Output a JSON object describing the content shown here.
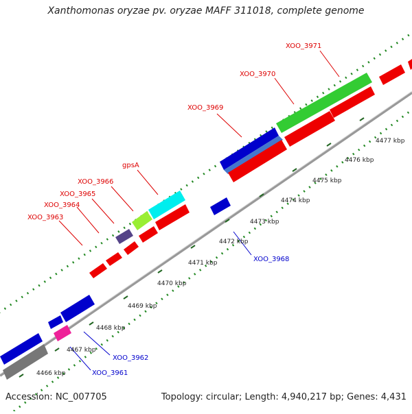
{
  "title": "Xanthomonas oryzae pv. oryzae MAFF 311018, complete genome",
  "footer": {
    "accession": "Accession: NC_007705",
    "summary": "Topology: circular; Length: 4,940,217 bp; Genes: 4,431"
  },
  "ticks": [
    "4466 kbp",
    "4467 kbp",
    "4468 kbp",
    "4469 kbp",
    "4470 kbp",
    "4471 kbp",
    "4472 kbp",
    "4473 kbp",
    "4474 kbp",
    "4475 kbp",
    "4476 kbp",
    "4477 kbp"
  ],
  "genes": {
    "top": [
      "XOO_3963",
      "XOO_3964",
      "XOO_3965",
      "XOO_3966",
      "gpsA",
      "XOO_3969",
      "XOO_3970",
      "XOO_3971"
    ],
    "bottom": [
      "XOO_3961",
      "XOO_3962",
      "XOO_3968"
    ]
  },
  "colors": {
    "label_top": "#dd0000",
    "label_bottom": "#0000cc",
    "red_gene": "#ee0000",
    "blue_gene": "#0000cc",
    "green_gene": "#33cc33",
    "cyan_gene": "#00eeee",
    "lime_gene": "#99ee33",
    "purple_gene": "#554488",
    "magenta_gene": "#ee2299",
    "gray_gene": "#777777",
    "dots": "#228822"
  }
}
